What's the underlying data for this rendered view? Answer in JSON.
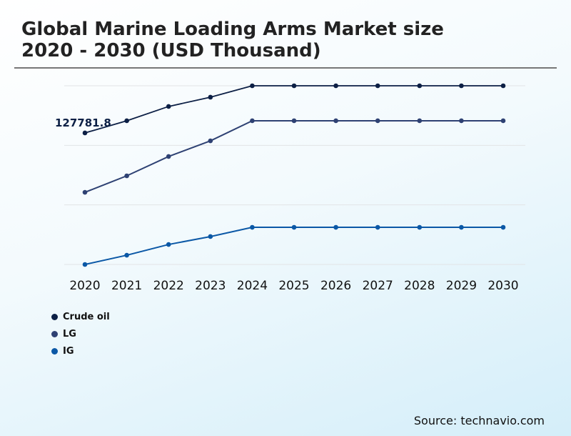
{
  "chart_data": {
    "type": "line",
    "title": "Global Marine Loading Arms Market size 2020 - 2030 (USD Thousand)",
    "categories": [
      "2020",
      "2021",
      "2022",
      "2023",
      "2024",
      "2025",
      "2026",
      "2027",
      "2028",
      "2029",
      "2030"
    ],
    "series": [
      {
        "name": "Crude oil",
        "color": "#0c1f45",
        "values": [
          127781.8,
          139600,
          153500,
          162500,
          173600,
          173600,
          173600,
          173600,
          173600,
          173600,
          173600
        ]
      },
      {
        "name": "LG",
        "color": "#2e4173",
        "values": [
          70100,
          86100,
          104900,
          120100,
          139600,
          139600,
          139600,
          139600,
          139600,
          139600,
          139600
        ]
      },
      {
        "name": "IG",
        "color": "#0b58a6",
        "values": [
          0,
          9000,
          19400,
          27100,
          36100,
          36100,
          36100,
          36100,
          36100,
          36100,
          36100
        ]
      }
    ],
    "data_labels": [
      {
        "series": "Crude oil",
        "category": "2020",
        "text": "127781.8"
      }
    ],
    "ylim": [
      0,
      173600
    ],
    "grid": true,
    "legend": "bottom-left"
  },
  "source": "Source: technavio.com"
}
